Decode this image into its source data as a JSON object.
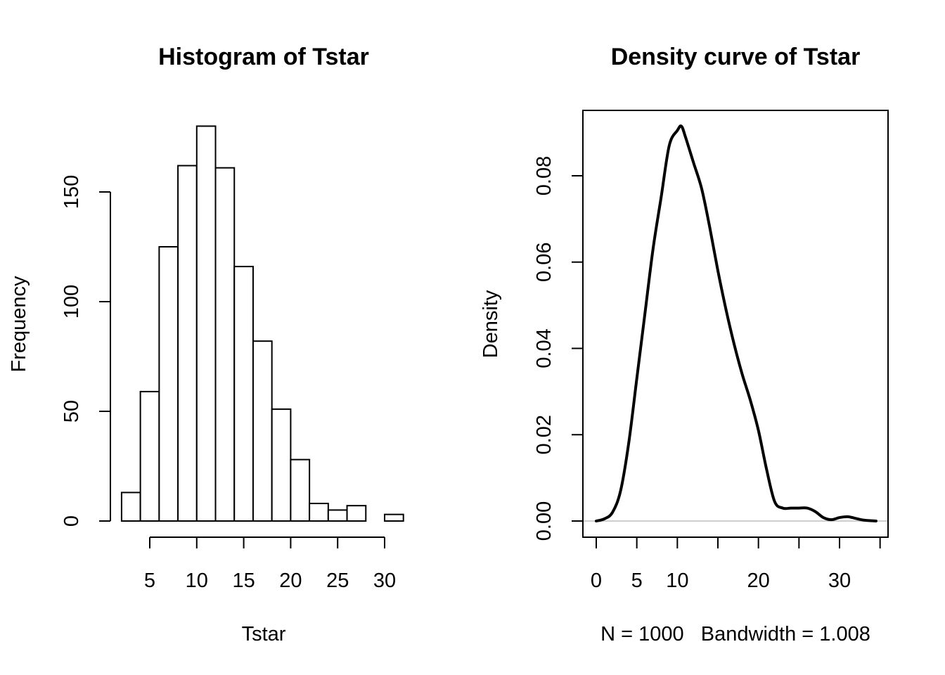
{
  "chart_data": [
    {
      "type": "bar",
      "title": "Histogram of Tstar",
      "xlabel": "Tstar",
      "ylabel": "Frequency",
      "bin_edges": [
        2,
        4,
        6,
        8,
        10,
        12,
        14,
        16,
        18,
        20,
        22,
        24,
        26,
        28,
        30,
        32
      ],
      "values": [
        13,
        59,
        125,
        162,
        180,
        161,
        116,
        82,
        51,
        28,
        8,
        5,
        7,
        0,
        3
      ],
      "xticks": [
        5,
        10,
        15,
        20,
        25,
        30
      ],
      "yticks": [
        0,
        50,
        100,
        150
      ],
      "xlim": [
        5,
        30
      ],
      "ylim": [
        0,
        180
      ],
      "grid": false,
      "bar_fill": "#ffffff",
      "bar_stroke": "#000000"
    },
    {
      "type": "line",
      "title": "Density curve of Tstar",
      "xlabel": "N = 1000   Bandwidth = 1.008",
      "ylabel": "Density",
      "series": [
        {
          "x": [
            0,
            1,
            2,
            3,
            4,
            5,
            6,
            7,
            8,
            9,
            10,
            10.5,
            11,
            12,
            13,
            14,
            15,
            16,
            17,
            18,
            19,
            20,
            21,
            22,
            23,
            24,
            25,
            26,
            27,
            28,
            29,
            30,
            31,
            32,
            33,
            34.5
          ],
          "y": [
            0.0,
            0.0005,
            0.002,
            0.007,
            0.018,
            0.033,
            0.048,
            0.063,
            0.075,
            0.087,
            0.0905,
            0.0915,
            0.089,
            0.083,
            0.077,
            0.068,
            0.058,
            0.049,
            0.041,
            0.034,
            0.028,
            0.021,
            0.012,
            0.0045,
            0.003,
            0.003,
            0.003,
            0.003,
            0.0022,
            0.0008,
            0.0003,
            0.0008,
            0.001,
            0.0006,
            0.0002,
            0.0
          ]
        }
      ],
      "xticks": [
        0,
        5,
        10,
        20,
        30
      ],
      "extra_ticks": [
        15,
        25,
        35
      ],
      "yticks": [
        "0.00",
        "0.02",
        "0.04",
        "0.06",
        "0.08"
      ],
      "xlim": [
        -1.7,
        35.9
      ],
      "ylim": [
        -0.0037,
        0.0951
      ],
      "baseline_color": "#bebebe",
      "line_color": "#000000",
      "grid": false
    }
  ]
}
